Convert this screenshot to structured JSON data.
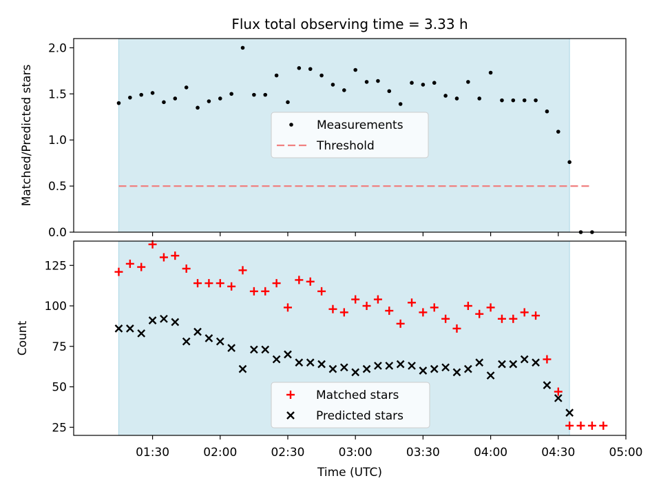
{
  "chart_data": {
    "title": "Flux total observing time = 3.33 h",
    "xlabel": "Time (UTC)",
    "x_unit": "minutes after 01:00 UTC",
    "xlim": [
      55,
      300
    ],
    "x_ticks": [
      {
        "value": 90,
        "label": "01:30"
      },
      {
        "value": 120,
        "label": "02:00"
      },
      {
        "value": 150,
        "label": "02:30"
      },
      {
        "value": 180,
        "label": "03:00"
      },
      {
        "value": 210,
        "label": "03:30"
      },
      {
        "value": 240,
        "label": "04:00"
      },
      {
        "value": 270,
        "label": "04:30"
      },
      {
        "value": 300,
        "label": "05:00"
      }
    ],
    "shaded_interval": {
      "start": 75,
      "end": 275,
      "color": "#add8e6"
    },
    "panels": [
      {
        "id": "ratio",
        "type": "scatter",
        "ylabel": "Matched/Predicted stars",
        "ylim": [
          0,
          2.1
        ],
        "y_ticks": [
          {
            "value": 0,
            "label": "0.0"
          },
          {
            "value": 0.5,
            "label": "0.5"
          },
          {
            "value": 1.0,
            "label": "1.0"
          },
          {
            "value": 1.5,
            "label": "1.5"
          },
          {
            "value": 2.0,
            "label": "2.0"
          }
        ],
        "legend": {
          "position": "center",
          "entries": [
            {
              "label": "Measurements",
              "marker": "dot",
              "color": "#000000"
            },
            {
              "label": "Threshold",
              "marker": "dashed-line",
              "color": "#f08080"
            }
          ]
        },
        "threshold": {
          "value": 0.5,
          "x_start": 75,
          "x_end": 285,
          "color": "#f08080"
        },
        "series": [
          {
            "name": "Measurements",
            "color": "#000000",
            "x": [
              75,
              80,
              85,
              90,
              95,
              100,
              105,
              110,
              115,
              120,
              125,
              130,
              135,
              140,
              145,
              150,
              155,
              160,
              165,
              170,
              175,
              180,
              185,
              190,
              195,
              200,
              205,
              210,
              215,
              220,
              225,
              230,
              235,
              240,
              245,
              250,
              255,
              260,
              265,
              270,
              275,
              280,
              285
            ],
            "y": [
              1.4,
              1.46,
              1.49,
              1.51,
              1.41,
              1.45,
              1.57,
              1.35,
              1.42,
              1.45,
              1.5,
              2.0,
              1.49,
              1.49,
              1.7,
              1.41,
              1.78,
              1.77,
              1.7,
              1.6,
              1.54,
              1.76,
              1.63,
              1.64,
              1.53,
              1.39,
              1.62,
              1.6,
              1.62,
              1.48,
              1.45,
              1.63,
              1.45,
              1.73,
              1.43,
              1.43,
              1.43,
              1.43,
              1.31,
              1.09,
              0.76,
              0.0,
              0.0
            ]
          }
        ]
      },
      {
        "id": "counts",
        "type": "scatter",
        "ylabel": "Count",
        "ylim": [
          20,
          140
        ],
        "y_ticks": [
          {
            "value": 25,
            "label": "25"
          },
          {
            "value": 50,
            "label": "50"
          },
          {
            "value": 75,
            "label": "75"
          },
          {
            "value": 100,
            "label": "100"
          },
          {
            "value": 125,
            "label": "125"
          }
        ],
        "legend": {
          "position": "lower center",
          "entries": [
            {
              "label": "Matched stars",
              "marker": "plus",
              "color": "#ff0000"
            },
            {
              "label": "Predicted stars",
              "marker": "cross",
              "color": "#000000"
            }
          ]
        },
        "series": [
          {
            "name": "Matched stars",
            "marker": "plus",
            "color": "#ff0000",
            "x": [
              75,
              80,
              85,
              90,
              95,
              100,
              105,
              110,
              115,
              120,
              125,
              130,
              135,
              140,
              145,
              150,
              155,
              160,
              165,
              170,
              175,
              180,
              185,
              190,
              195,
              200,
              205,
              210,
              215,
              220,
              225,
              230,
              235,
              240,
              245,
              250,
              255,
              260,
              265,
              270,
              275,
              280,
              285,
              290
            ],
            "y": [
              121,
              126,
              124,
              138,
              130,
              131,
              123,
              114,
              114,
              114,
              112,
              122,
              109,
              109,
              114,
              99,
              116,
              115,
              109,
              98,
              96,
              104,
              100,
              104,
              97,
              89,
              102,
              96,
              99,
              92,
              86,
              100,
              95,
              99,
              92,
              92,
              96,
              94,
              67,
              47,
              26,
              26,
              26,
              26
            ]
          },
          {
            "name": "Predicted stars",
            "marker": "cross",
            "color": "#000000",
            "x": [
              75,
              80,
              85,
              90,
              95,
              100,
              105,
              110,
              115,
              120,
              125,
              130,
              135,
              140,
              145,
              150,
              155,
              160,
              165,
              170,
              175,
              180,
              185,
              190,
              195,
              200,
              205,
              210,
              215,
              220,
              225,
              230,
              235,
              240,
              245,
              250,
              255,
              260,
              265,
              270,
              275
            ],
            "y": [
              86,
              86,
              83,
              91,
              92,
              90,
              78,
              84,
              80,
              78,
              74,
              61,
              73,
              73,
              67,
              70,
              65,
              65,
              64,
              61,
              62,
              59,
              61,
              63,
              63,
              64,
              63,
              60,
              61,
              62,
              59,
              61,
              65,
              57,
              64,
              64,
              67,
              65,
              51,
              43,
              34
            ]
          }
        ]
      }
    ]
  }
}
